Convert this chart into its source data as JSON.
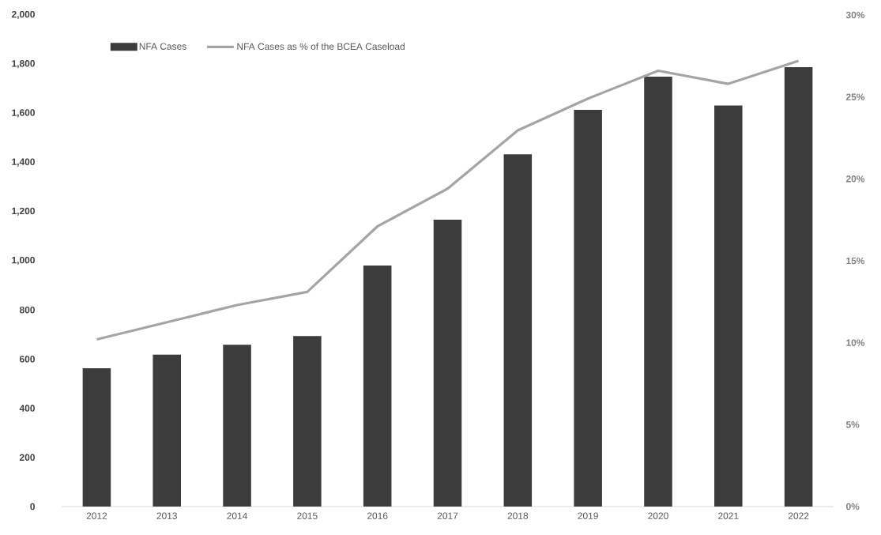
{
  "chart_data": {
    "type": "bar",
    "categories": [
      "2012",
      "2013",
      "2014",
      "2015",
      "2016",
      "2017",
      "2018",
      "2019",
      "2020",
      "2021",
      "2022"
    ],
    "series": [
      {
        "name": "NFA Cases",
        "color": "#3c3c3c",
        "values": [
          563,
          618,
          658,
          694,
          981,
          1167,
          1433,
          1614,
          1749,
          1632,
          1788
        ]
      },
      {
        "name": "NFA Cases as % of the BCEA Caseload",
        "type": "line",
        "axis": "y2",
        "color": "#a5a5a5",
        "values": [
          10.2,
          11.25,
          12.3,
          13.1,
          17.1,
          19.4,
          22.96,
          24.9,
          26.6,
          25.8,
          27.2
        ]
      }
    ],
    "ylim": [
      0,
      2000
    ],
    "yticks": [
      {
        "value": 0,
        "label": "0"
      },
      {
        "value": 200,
        "label": "200"
      },
      {
        "value": 400,
        "label": "400"
      },
      {
        "value": 600,
        "label": "600"
      },
      {
        "value": 800,
        "label": "800"
      },
      {
        "value": 1000,
        "label": "1,000"
      },
      {
        "value": 1200,
        "label": "1,200"
      },
      {
        "value": 1400,
        "label": "1,400"
      },
      {
        "value": 1600,
        "label": "1,600"
      },
      {
        "value": 1800,
        "label": "1,800"
      },
      {
        "value": 2000,
        "label": "2,000"
      }
    ],
    "y2lim": [
      0,
      30
    ],
    "y2ticks": [
      {
        "value": 0,
        "label": "0%"
      },
      {
        "value": 5,
        "label": "5%"
      },
      {
        "value": 10,
        "label": "10%"
      },
      {
        "value": 15,
        "label": "15%"
      },
      {
        "value": 20,
        "label": "20%"
      },
      {
        "value": 25,
        "label": "25%"
      },
      {
        "value": 30,
        "label": "30%"
      }
    ],
    "legend": "top left"
  }
}
